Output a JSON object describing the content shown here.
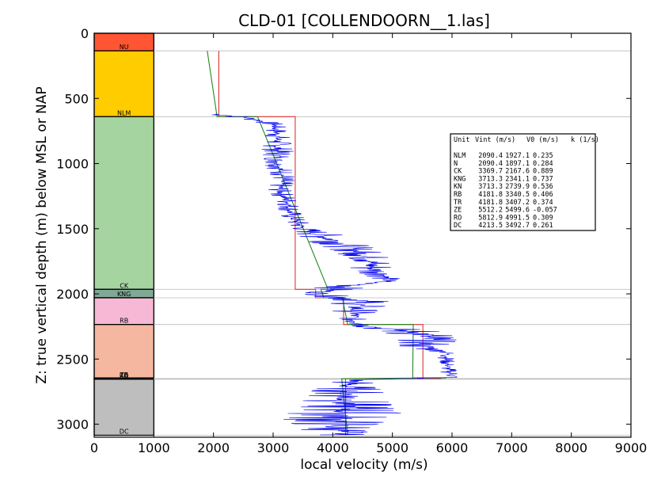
{
  "chart_data": {
    "type": "line",
    "title": "CLD-01 [COLLENDOORN__1.las]",
    "xlabel": "local velocity (m/s)",
    "ylabel": "Z: true vertical depth (m) below MSL or NAP",
    "xlim": [
      0,
      9000
    ],
    "ylim": [
      3100,
      0
    ],
    "x_ticks": [
      "0",
      "1000",
      "2000",
      "3000",
      "4000",
      "5000",
      "6000",
      "7000",
      "8000",
      "9000"
    ],
    "y_ticks": [
      "0",
      "500",
      "1000",
      "1500",
      "2000",
      "2500",
      "3000"
    ],
    "units": [
      {
        "name": "NU",
        "top": 0,
        "base": 135,
        "color": "#FF5533"
      },
      {
        "name": "NLM",
        "top": 135,
        "base": 640,
        "color": "#FFCC00"
      },
      {
        "name": "CK",
        "top": 640,
        "base": 1965,
        "color": "#A6D4A1"
      },
      {
        "name": "KNG",
        "top": 1965,
        "base": 2030,
        "color": "#7FA896"
      },
      {
        "name": "RB",
        "top": 2030,
        "base": 2235,
        "color": "#F6B8D4"
      },
      {
        "name": "TR",
        "top": 2235,
        "base": 2650,
        "color": "#F5B7A0"
      },
      {
        "name": "ZE",
        "top": 2645,
        "base": 2650,
        "color": "#C8A8C8"
      },
      {
        "name": "RO",
        "top": 2650,
        "base": 2655,
        "color": "#D09090"
      },
      {
        "name": "DC",
        "top": 2655,
        "base": 3085,
        "color": "#BEBEBE"
      }
    ],
    "table": {
      "header": {
        "unit": "Unit",
        "vint": "Vint (m/s)",
        "v0": "V0 (m/s)",
        "k": "k (1/s)"
      },
      "rows": [
        {
          "unit": "NLM",
          "vint": "2090.4",
          "v0": "1927.1",
          "k": "0.235"
        },
        {
          "unit": "N",
          "vint": "2090.4",
          "v0": "1897.1",
          "k": "0.284"
        },
        {
          "unit": "CK",
          "vint": "3369.7",
          "v0": "2167.6",
          "k": "0.889"
        },
        {
          "unit": "KNG",
          "vint": "3713.3",
          "v0": "2341.1",
          "k": "0.737"
        },
        {
          "unit": "KN",
          "vint": "3713.3",
          "v0": "2739.9",
          "k": "0.536"
        },
        {
          "unit": "RB",
          "vint": "4181.8",
          "v0": "3340.5",
          "k": "0.406"
        },
        {
          "unit": "TR",
          "vint": "4181.8",
          "v0": "3407.2",
          "k": "0.374"
        },
        {
          "unit": "ZE",
          "vint": "5512.2",
          "v0": "5499.6",
          "k": "-0.057"
        },
        {
          "unit": "RO",
          "vint": "5812.9",
          "v0": "4991.5",
          "k": "0.309"
        },
        {
          "unit": "DC",
          "vint": "4213.5",
          "v0": "3492.7",
          "k": "0.261"
        }
      ]
    },
    "series": [
      {
        "color": "#DD3333",
        "style": "interval velocity",
        "points": [
          [
            2090,
            135
          ],
          [
            2090,
            640
          ],
          [
            3370,
            640
          ],
          [
            3370,
            1965
          ],
          [
            3713,
            1965
          ],
          [
            3713,
            2030
          ],
          [
            4182,
            2030
          ],
          [
            4182,
            2235
          ],
          [
            5512,
            2235
          ],
          [
            5512,
            2645
          ],
          [
            5813,
            2645
          ],
          [
            5813,
            2650
          ],
          [
            4214,
            2650
          ],
          [
            4214,
            3085
          ]
        ]
      },
      {
        "color": "#228822",
        "style": "linear V0+kZ",
        "points": [
          [
            1895,
            135
          ],
          [
            2060,
            640
          ],
          [
            2740,
            640
          ],
          [
            3920,
            1965
          ],
          [
            3800,
            1965
          ],
          [
            3850,
            2030
          ],
          [
            4160,
            2030
          ],
          [
            4250,
            2235
          ],
          [
            5350,
            2235
          ],
          [
            5340,
            2645
          ],
          [
            5900,
            2645
          ],
          [
            4150,
            2650
          ],
          [
            4250,
            3085
          ]
        ]
      },
      {
        "color": "#0000EE",
        "style": "sonic log",
        "bands": [
          [
            620,
            1800,
            2250
          ],
          [
            650,
            2400,
            2800
          ],
          [
            700,
            2850,
            3200
          ],
          [
            800,
            2850,
            3300
          ],
          [
            900,
            2800,
            3350
          ],
          [
            1000,
            2850,
            3300
          ],
          [
            1100,
            2950,
            3400
          ],
          [
            1200,
            2900,
            3300
          ],
          [
            1300,
            3050,
            3450
          ],
          [
            1400,
            3100,
            3500
          ],
          [
            1500,
            3300,
            3700
          ],
          [
            1560,
            3400,
            4300
          ],
          [
            1600,
            3600,
            4550
          ],
          [
            1650,
            3900,
            4700
          ],
          [
            1700,
            4100,
            4950
          ],
          [
            1750,
            4300,
            5000
          ],
          [
            1800,
            4200,
            5100
          ],
          [
            1850,
            4500,
            5200
          ],
          [
            1900,
            4700,
            5100
          ],
          [
            1950,
            3700,
            4600
          ],
          [
            2000,
            3500,
            3950
          ],
          [
            2050,
            4000,
            5000
          ],
          [
            2100,
            3900,
            4900
          ],
          [
            2150,
            4050,
            4700
          ],
          [
            2200,
            4100,
            4550
          ],
          [
            2250,
            4300,
            4900
          ],
          [
            2300,
            4800,
            6200
          ],
          [
            2350,
            5100,
            6100
          ],
          [
            2400,
            5000,
            6000
          ],
          [
            2450,
            5800,
            6050
          ],
          [
            2500,
            5750,
            6050
          ],
          [
            2550,
            5800,
            6050
          ],
          [
            2600,
            5800,
            6100
          ],
          [
            2640,
            5900,
            6200
          ],
          [
            2660,
            4000,
            4800
          ],
          [
            2700,
            3800,
            4700
          ],
          [
            2750,
            3600,
            4900
          ],
          [
            2800,
            3500,
            5000
          ],
          [
            2850,
            3400,
            5000
          ],
          [
            2900,
            3300,
            5300
          ],
          [
            2950,
            3100,
            5000
          ],
          [
            3000,
            3200,
            4900
          ],
          [
            3050,
            3500,
            4700
          ],
          [
            3085,
            3800,
            4500
          ]
        ]
      }
    ]
  }
}
